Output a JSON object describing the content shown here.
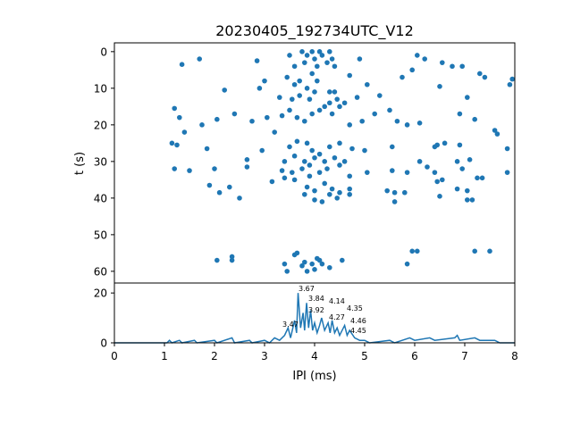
{
  "chart_data": [
    {
      "type": "scatter",
      "title": "20230405_192734UTC_V12",
      "xlabel": "",
      "ylabel": "t (s)",
      "xlim": [
        0,
        8
      ],
      "ylim": [
        63.2,
        -2.4
      ],
      "yticks": [
        0,
        10,
        20,
        30,
        40,
        50,
        60
      ],
      "color": "#1f77b4",
      "points": [
        [
          1.35,
          3.5
        ],
        [
          1.7,
          2
        ],
        [
          2.85,
          2.5
        ],
        [
          3.5,
          1
        ],
        [
          3.6,
          4
        ],
        [
          3.75,
          0
        ],
        [
          3.8,
          3
        ],
        [
          3.85,
          1
        ],
        [
          3.95,
          0
        ],
        [
          4.0,
          2
        ],
        [
          4.05,
          4
        ],
        [
          4.1,
          0
        ],
        [
          4.15,
          1
        ],
        [
          4.25,
          3
        ],
        [
          4.3,
          0
        ],
        [
          4.35,
          2
        ],
        [
          4.4,
          4
        ],
        [
          4.9,
          2
        ],
        [
          5.75,
          7
        ],
        [
          6.05,
          1
        ],
        [
          6.2,
          2
        ],
        [
          5.95,
          5
        ],
        [
          6.55,
          3
        ],
        [
          6.75,
          4
        ],
        [
          6.95,
          4
        ],
        [
          7.3,
          6
        ],
        [
          7.4,
          7
        ],
        [
          7.95,
          7.5
        ],
        [
          7.9,
          9
        ],
        [
          3.0,
          8
        ],
        [
          3.45,
          7
        ],
        [
          3.6,
          9
        ],
        [
          3.7,
          8
        ],
        [
          3.85,
          10
        ],
        [
          3.95,
          6
        ],
        [
          4.05,
          8
        ],
        [
          4.3,
          11
        ],
        [
          4.4,
          11
        ],
        [
          4.7,
          6.5
        ],
        [
          5.05,
          9
        ],
        [
          2.2,
          10.5
        ],
        [
          2.9,
          10
        ],
        [
          6.5,
          9.5
        ],
        [
          7.05,
          12.5
        ],
        [
          3.3,
          12.5
        ],
        [
          3.55,
          13
        ],
        [
          3.7,
          12
        ],
        [
          3.9,
          13
        ],
        [
          4.0,
          11
        ],
        [
          4.2,
          15
        ],
        [
          4.3,
          14
        ],
        [
          4.45,
          13
        ],
        [
          4.6,
          14
        ],
        [
          4.85,
          12.5
        ],
        [
          5.3,
          12
        ],
        [
          1.2,
          15.5
        ],
        [
          1.3,
          18
        ],
        [
          1.4,
          22
        ],
        [
          1.75,
          20
        ],
        [
          2.05,
          18.5
        ],
        [
          2.4,
          17
        ],
        [
          2.75,
          19
        ],
        [
          3.05,
          18
        ],
        [
          3.2,
          22
        ],
        [
          3.35,
          17.5
        ],
        [
          3.5,
          16
        ],
        [
          3.65,
          18
        ],
        [
          3.8,
          19
        ],
        [
          3.95,
          17
        ],
        [
          4.1,
          16
        ],
        [
          4.35,
          17
        ],
        [
          4.5,
          15
        ],
        [
          4.7,
          20
        ],
        [
          4.95,
          19
        ],
        [
          5.2,
          17
        ],
        [
          5.5,
          16
        ],
        [
          5.65,
          19
        ],
        [
          5.85,
          20
        ],
        [
          6.1,
          19.5
        ],
        [
          6.9,
          17
        ],
        [
          7.2,
          18.5
        ],
        [
          7.6,
          21.5
        ],
        [
          7.65,
          22.5
        ],
        [
          7.85,
          26.5
        ],
        [
          1.15,
          25
        ],
        [
          1.25,
          25.5
        ],
        [
          1.85,
          26.5
        ],
        [
          3.5,
          26
        ],
        [
          3.65,
          24.5
        ],
        [
          3.85,
          25
        ],
        [
          3.95,
          27
        ],
        [
          4.1,
          28
        ],
        [
          4.3,
          26
        ],
        [
          4.5,
          25
        ],
        [
          4.75,
          26.5
        ],
        [
          5.0,
          27
        ],
        [
          5.55,
          26
        ],
        [
          6.4,
          26
        ],
        [
          6.45,
          25.5
        ],
        [
          6.6,
          25
        ],
        [
          6.9,
          25.5
        ],
        [
          2.65,
          29.5
        ],
        [
          2.95,
          27
        ],
        [
          3.4,
          30
        ],
        [
          3.6,
          28.5
        ],
        [
          3.8,
          30
        ],
        [
          3.9,
          31
        ],
        [
          4.0,
          29
        ],
        [
          4.2,
          30
        ],
        [
          4.4,
          29
        ],
        [
          4.6,
          30
        ],
        [
          6.1,
          30
        ],
        [
          6.25,
          31.5
        ],
        [
          6.85,
          30
        ],
        [
          7.1,
          29.5
        ],
        [
          2.0,
          32
        ],
        [
          2.65,
          31.5
        ],
        [
          3.35,
          32.5
        ],
        [
          3.55,
          33
        ],
        [
          3.75,
          32
        ],
        [
          3.9,
          34
        ],
        [
          4.1,
          33
        ],
        [
          4.25,
          32
        ],
        [
          4.5,
          31
        ],
        [
          4.7,
          34
        ],
        [
          5.05,
          33
        ],
        [
          5.55,
          32.5
        ],
        [
          5.85,
          33
        ],
        [
          6.4,
          33
        ],
        [
          6.55,
          35
        ],
        [
          6.95,
          32
        ],
        [
          7.25,
          34.5
        ],
        [
          7.35,
          34.5
        ],
        [
          7.85,
          33
        ],
        [
          1.2,
          32
        ],
        [
          1.5,
          32.5
        ],
        [
          1.9,
          36.5
        ],
        [
          2.3,
          37
        ],
        [
          3.15,
          35.5
        ],
        [
          3.4,
          34.5
        ],
        [
          3.6,
          35
        ],
        [
          3.85,
          37
        ],
        [
          4.0,
          38
        ],
        [
          4.2,
          36
        ],
        [
          4.35,
          37.5
        ],
        [
          4.5,
          38.5
        ],
        [
          4.7,
          37.5
        ],
        [
          5.45,
          38
        ],
        [
          5.6,
          38.5
        ],
        [
          5.8,
          38.5
        ],
        [
          6.45,
          35.5
        ],
        [
          6.85,
          37.5
        ],
        [
          7.05,
          38
        ],
        [
          2.1,
          38.5
        ],
        [
          2.5,
          40
        ],
        [
          3.8,
          39
        ],
        [
          4.0,
          40.5
        ],
        [
          4.15,
          41
        ],
        [
          4.3,
          39
        ],
        [
          4.45,
          40
        ],
        [
          4.7,
          39
        ],
        [
          5.6,
          41
        ],
        [
          6.5,
          39.5
        ],
        [
          7.05,
          40.5
        ],
        [
          7.15,
          40.5
        ],
        [
          2.05,
          57
        ],
        [
          2.35,
          56
        ],
        [
          2.35,
          57
        ],
        [
          3.4,
          58
        ],
        [
          3.6,
          55.5
        ],
        [
          3.75,
          58.5
        ],
        [
          3.85,
          60
        ],
        [
          3.95,
          58
        ],
        [
          4.05,
          56.5
        ],
        [
          4.15,
          58
        ],
        [
          4.3,
          59
        ],
        [
          4.1,
          57
        ],
        [
          4.55,
          57
        ],
        [
          3.45,
          60
        ],
        [
          3.65,
          55
        ],
        [
          5.85,
          58
        ],
        [
          5.95,
          54.5
        ],
        [
          6.05,
          54.5
        ],
        [
          7.2,
          54.5
        ],
        [
          7.5,
          54.5
        ],
        [
          3.8,
          57.5
        ],
        [
          4.0,
          59.5
        ]
      ]
    },
    {
      "type": "line",
      "xlabel": "IPI (ms)",
      "ylabel": "",
      "xlim": [
        0,
        8
      ],
      "ylim": [
        0,
        24
      ],
      "xticks": [
        0,
        1,
        2,
        3,
        4,
        5,
        6,
        7,
        8
      ],
      "yticks": [
        0,
        20
      ],
      "color": "#1f77b4",
      "points": [
        [
          0,
          0
        ],
        [
          1.05,
          0
        ],
        [
          1.1,
          1
        ],
        [
          1.15,
          0
        ],
        [
          1.3,
          1
        ],
        [
          1.35,
          0
        ],
        [
          1.6,
          1
        ],
        [
          1.65,
          0
        ],
        [
          2.0,
          1
        ],
        [
          2.05,
          0
        ],
        [
          2.35,
          2
        ],
        [
          2.4,
          0
        ],
        [
          2.7,
          1
        ],
        [
          2.75,
          0
        ],
        [
          3.0,
          1
        ],
        [
          3.1,
          0
        ],
        [
          3.2,
          2
        ],
        [
          3.3,
          1
        ],
        [
          3.4,
          3
        ],
        [
          3.47,
          6
        ],
        [
          3.52,
          2
        ],
        [
          3.6,
          9
        ],
        [
          3.64,
          4
        ],
        [
          3.67,
          20
        ],
        [
          3.72,
          6
        ],
        [
          3.77,
          12
        ],
        [
          3.8,
          5
        ],
        [
          3.84,
          16
        ],
        [
          3.88,
          6
        ],
        [
          3.92,
          13
        ],
        [
          3.96,
          5
        ],
        [
          4.0,
          8
        ],
        [
          4.05,
          4
        ],
        [
          4.1,
          7
        ],
        [
          4.14,
          10
        ],
        [
          4.2,
          5
        ],
        [
          4.27,
          8
        ],
        [
          4.31,
          4
        ],
        [
          4.35,
          9
        ],
        [
          4.4,
          4
        ],
        [
          4.45,
          6
        ],
        [
          4.5,
          3
        ],
        [
          4.6,
          7
        ],
        [
          4.65,
          3
        ],
        [
          4.7,
          5
        ],
        [
          4.8,
          2
        ],
        [
          4.9,
          1
        ],
        [
          5.0,
          1
        ],
        [
          5.1,
          0
        ],
        [
          5.5,
          1
        ],
        [
          5.6,
          0
        ],
        [
          5.9,
          2
        ],
        [
          6.0,
          1
        ],
        [
          6.3,
          2
        ],
        [
          6.4,
          1
        ],
        [
          6.8,
          2
        ],
        [
          6.85,
          3
        ],
        [
          6.9,
          1
        ],
        [
          7.2,
          2
        ],
        [
          7.3,
          1
        ],
        [
          7.6,
          1
        ],
        [
          7.7,
          0
        ],
        [
          8,
          0
        ]
      ],
      "annotations": [
        {
          "x": 3.47,
          "y": 6,
          "text": "3.47"
        },
        {
          "x": 3.67,
          "y": 20,
          "text": "3.67"
        },
        {
          "x": 3.84,
          "y": 16,
          "text": "3.84"
        },
        {
          "x": 3.92,
          "y": 11.5,
          "text": "3.92"
        },
        {
          "x": 4.14,
          "y": 10,
          "text": "4.14"
        },
        {
          "x": 4.27,
          "y": 8,
          "text": "4.27"
        },
        {
          "x": 4.35,
          "y": 9.5,
          "text": "4.35"
        },
        {
          "x": 4.46,
          "y": 6,
          "text": "4.46"
        },
        {
          "x": 4.45,
          "y": 6,
          "text": "4.45"
        }
      ]
    }
  ]
}
